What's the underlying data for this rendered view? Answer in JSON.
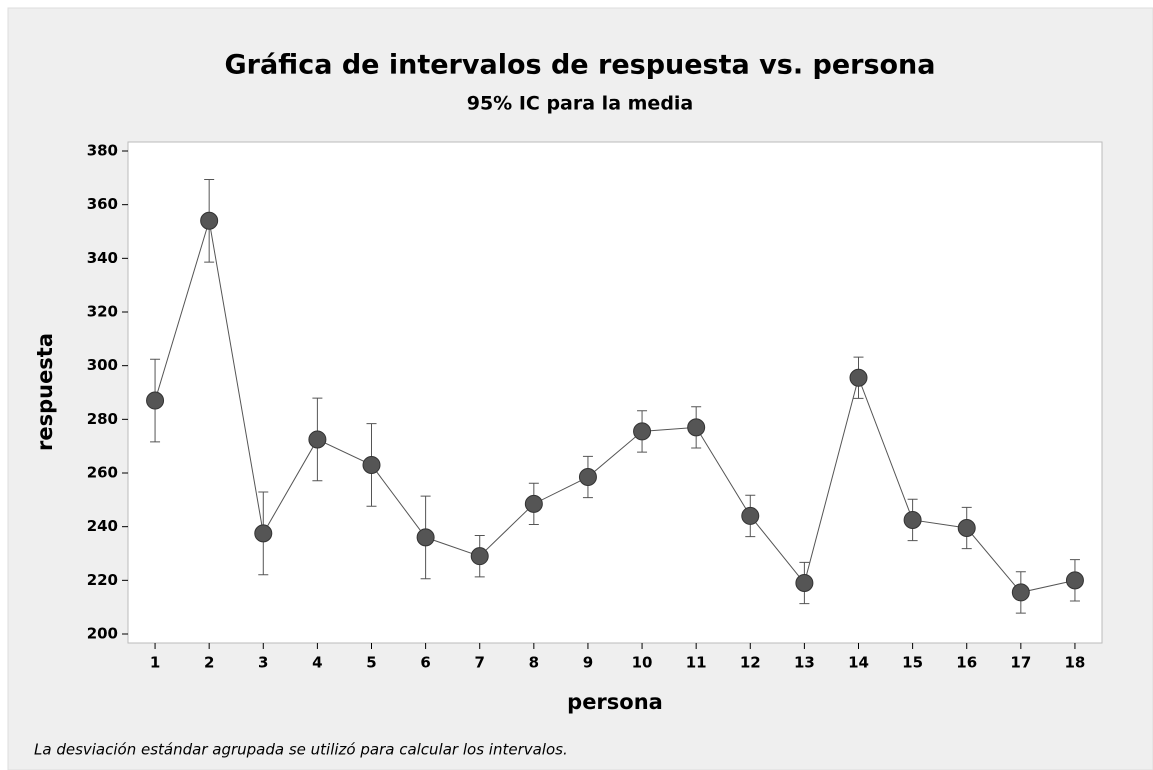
{
  "chart_data": {
    "type": "errorbar",
    "title": "Gráfica de intervalos de respuesta vs. persona",
    "subtitle": "95% IC para la media",
    "x_label": "persona",
    "y_label": "respuesta",
    "note": "La desviación estándar agrupada se utilizó para calcular los intervalos.",
    "categories": [
      "1",
      "2",
      "3",
      "4",
      "5",
      "6",
      "7",
      "8",
      "9",
      "10",
      "11",
      "12",
      "13",
      "14",
      "15",
      "16",
      "17",
      "18"
    ],
    "series": [
      {
        "color": "#555555",
        "values": [
          287,
          354,
          237.5,
          272.5,
          263,
          236,
          229,
          248.5,
          258.5,
          275.5,
          277,
          244,
          219,
          295.5,
          242.5,
          239.5,
          215.5,
          220
        ],
        "errors": [
          15.4,
          15.4,
          15.4,
          15.4,
          15.4,
          15.4,
          7.7,
          7.7,
          7.7,
          7.7,
          7.7,
          7.7,
          7.7,
          7.7,
          7.7,
          7.7,
          7.7,
          7.7
        ]
      }
    ],
    "ylim": [
      200,
      380
    ],
    "yticks": [
      200,
      220,
      240,
      260,
      280,
      300,
      320,
      340,
      360,
      380
    ],
    "grid": false
  }
}
